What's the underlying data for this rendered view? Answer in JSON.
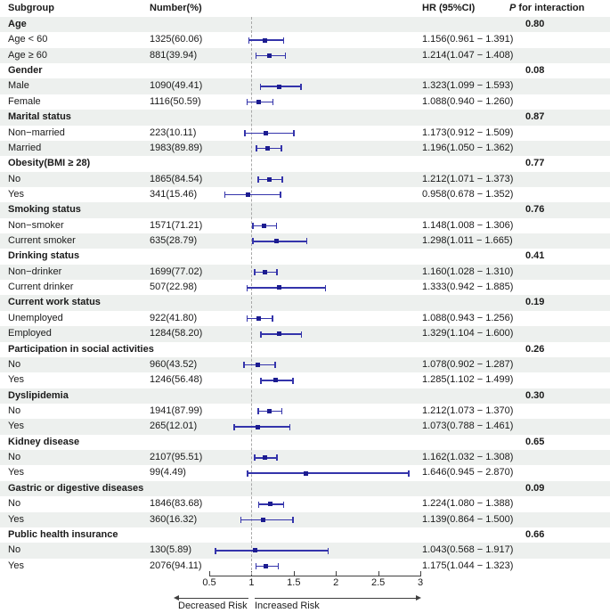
{
  "header": {
    "subgroup": "Subgroup",
    "number": "Number(%)",
    "hr": "HR (95%CI)",
    "p_italic": "P",
    "p_rest": " for interaction"
  },
  "axis": {
    "tick_labels": [
      "0.5",
      "1",
      "1.5",
      "2",
      "2.5",
      "3"
    ],
    "decreased_label": "Decreased Risk",
    "increased_label": "Increased Risk"
  },
  "colors": {
    "row_shade": "#edf0ee",
    "bar": "#3434ab",
    "marker": "#1c1c90",
    "ref_line": "#a8a8a8",
    "axis": "#3f3f3f",
    "text": "#1a1a1a"
  },
  "chart_data": {
    "type": "forest",
    "columns": [
      "Subgroup",
      "Number(%)",
      "HR (95%CI)",
      "P for interaction"
    ],
    "x_ticks": [
      0.5,
      1,
      1.5,
      2,
      2.5,
      3
    ],
    "x_range": [
      0.5,
      3
    ],
    "reference_line": 1,
    "arrow_labels": {
      "left": "Decreased Risk",
      "right": "Increased Risk"
    },
    "groups": [
      {
        "name": "Age",
        "p_interaction": "0.80",
        "items": [
          {
            "label": "Age < 60",
            "number_pct": "1325(60.06)",
            "hr": 1.156,
            "ci_low": 0.961,
            "ci_high": 1.391
          },
          {
            "label": "Age ≥ 60",
            "number_pct": "881(39.94)",
            "hr": 1.214,
            "ci_low": 1.047,
            "ci_high": 1.408
          }
        ]
      },
      {
        "name": "Gender",
        "p_interaction": "0.08",
        "items": [
          {
            "label": "Male",
            "number_pct": "1090(49.41)",
            "hr": 1.323,
            "ci_low": 1.099,
            "ci_high": 1.593
          },
          {
            "label": "Female",
            "number_pct": "1116(50.59)",
            "hr": 1.088,
            "ci_low": 0.94,
            "ci_high": 1.26
          }
        ]
      },
      {
        "name": "Marital status",
        "p_interaction": "0.87",
        "items": [
          {
            "label": "Non−married",
            "number_pct": "223(10.11)",
            "hr": 1.173,
            "ci_low": 0.912,
            "ci_high": 1.509
          },
          {
            "label": "Married",
            "number_pct": "1983(89.89)",
            "hr": 1.196,
            "ci_low": 1.05,
            "ci_high": 1.362
          }
        ]
      },
      {
        "name": "Obesity(BMI ≥ 28)",
        "p_interaction": "0.77",
        "items": [
          {
            "label": "No",
            "number_pct": "1865(84.54)",
            "hr": 1.212,
            "ci_low": 1.071,
            "ci_high": 1.373
          },
          {
            "label": "Yes",
            "number_pct": "341(15.46)",
            "hr": 0.958,
            "ci_low": 0.678,
            "ci_high": 1.352
          }
        ]
      },
      {
        "name": "Smoking status",
        "p_interaction": "0.76",
        "items": [
          {
            "label": "Non−smoker",
            "number_pct": "1571(71.21)",
            "hr": 1.148,
            "ci_low": 1.008,
            "ci_high": 1.306
          },
          {
            "label": "Current smoker",
            "number_pct": "635(28.79)",
            "hr": 1.298,
            "ci_low": 1.011,
            "ci_high": 1.665
          }
        ]
      },
      {
        "name": "Drinking status",
        "p_interaction": "0.41",
        "items": [
          {
            "label": "Non−drinker",
            "number_pct": "1699(77.02)",
            "hr": 1.16,
            "ci_low": 1.028,
            "ci_high": 1.31
          },
          {
            "label": "Current drinker",
            "number_pct": "507(22.98)",
            "hr": 1.333,
            "ci_low": 0.942,
            "ci_high": 1.885
          }
        ]
      },
      {
        "name": "Current work status",
        "p_interaction": "0.19",
        "items": [
          {
            "label": "Unemployed",
            "number_pct": "922(41.80)",
            "hr": 1.088,
            "ci_low": 0.943,
            "ci_high": 1.256
          },
          {
            "label": "Employed",
            "number_pct": "1284(58.20)",
            "hr": 1.329,
            "ci_low": 1.104,
            "ci_high": 1.6
          }
        ]
      },
      {
        "name": "Participation in social activities",
        "p_interaction": "0.26",
        "items": [
          {
            "label": "No",
            "number_pct": "960(43.52)",
            "hr": 1.078,
            "ci_low": 0.902,
            "ci_high": 1.287
          },
          {
            "label": "Yes",
            "number_pct": "1246(56.48)",
            "hr": 1.285,
            "ci_low": 1.102,
            "ci_high": 1.499
          }
        ]
      },
      {
        "name": "Dyslipidemia",
        "p_interaction": "0.30",
        "items": [
          {
            "label": "No",
            "number_pct": "1941(87.99)",
            "hr": 1.212,
            "ci_low": 1.073,
            "ci_high": 1.37
          },
          {
            "label": "Yes",
            "number_pct": "265(12.01)",
            "hr": 1.073,
            "ci_low": 0.788,
            "ci_high": 1.461
          }
        ]
      },
      {
        "name": "Kidney disease",
        "p_interaction": "0.65",
        "items": [
          {
            "label": "No",
            "number_pct": "2107(95.51)",
            "hr": 1.162,
            "ci_low": 1.032,
            "ci_high": 1.308
          },
          {
            "label": "Yes",
            "number_pct": "99(4.49)",
            "hr": 1.646,
            "ci_low": 0.945,
            "ci_high": 2.87
          }
        ]
      },
      {
        "name": "Gastric or digestive diseases",
        "p_interaction": "0.09",
        "items": [
          {
            "label": "No",
            "number_pct": "1846(83.68)",
            "hr": 1.224,
            "ci_low": 1.08,
            "ci_high": 1.388
          },
          {
            "label": "Yes",
            "number_pct": "360(16.32)",
            "hr": 1.139,
            "ci_low": 0.864,
            "ci_high": 1.5
          }
        ]
      },
      {
        "name": "Public health insurance",
        "p_interaction": "0.66",
        "items": [
          {
            "label": "No",
            "number_pct": "130(5.89)",
            "hr": 1.043,
            "ci_low": 0.568,
            "ci_high": 1.917
          },
          {
            "label": "Yes",
            "number_pct": "2076(94.11)",
            "hr": 1.175,
            "ci_low": 1.044,
            "ci_high": 1.323
          }
        ]
      }
    ]
  }
}
